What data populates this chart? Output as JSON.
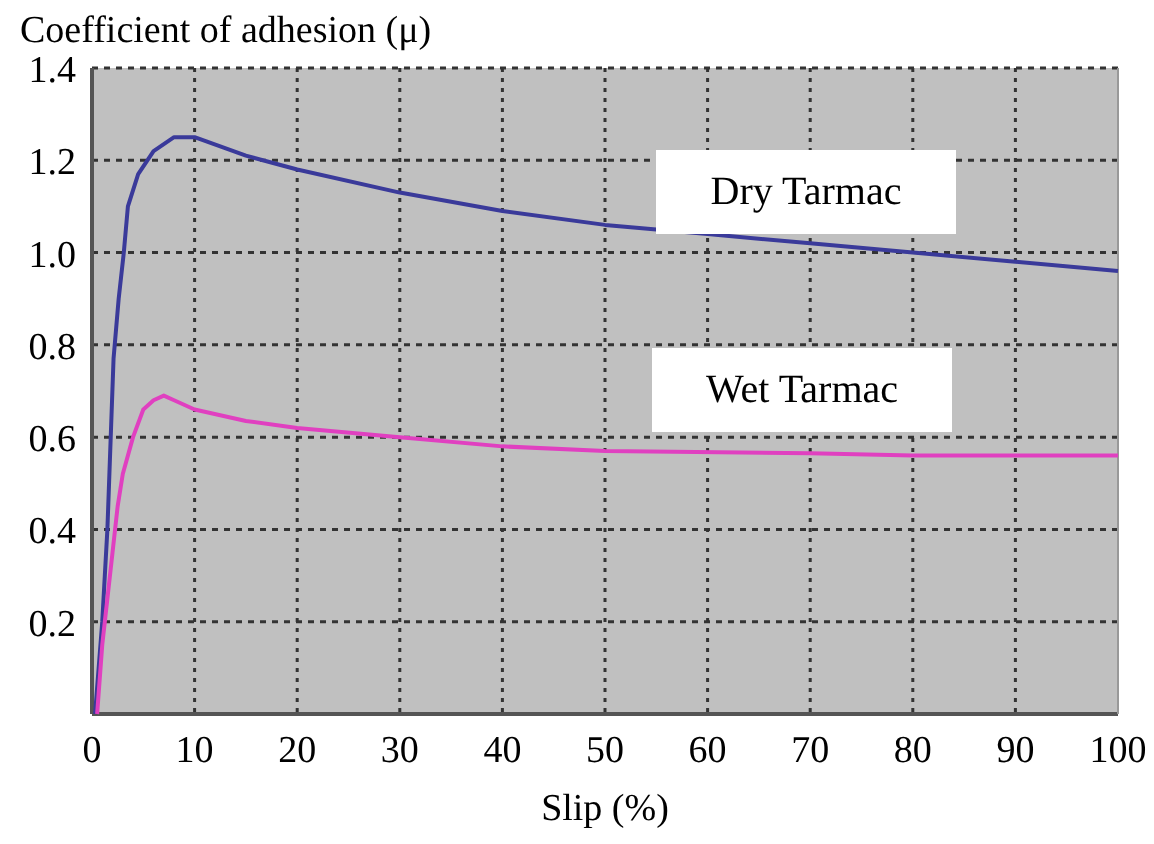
{
  "chart_data": {
    "type": "line",
    "ylabel": "Coefficient of adhesion (μ)",
    "xlabel": "Slip (%)",
    "xlim": [
      0,
      100
    ],
    "xticks": [
      0,
      10,
      20,
      30,
      40,
      50,
      60,
      70,
      80,
      90,
      100
    ],
    "ylim": [
      0,
      1.4
    ],
    "yticks": [
      0.2,
      0.4,
      0.6,
      0.8,
      {
        "value": 1,
        "label": "1.0"
      },
      1.2,
      1.4
    ],
    "grid": true,
    "legend": false,
    "line_style": "solid",
    "marker": "none",
    "series": [
      {
        "name": "Dry Tarmac",
        "color": "#3a3a9a",
        "x": [
          0.3,
          1,
          1.5,
          2.1,
          2.6,
          3.1,
          3.5,
          4.5,
          6,
          8,
          10,
          15,
          20,
          30,
          40,
          50,
          60,
          70,
          80,
          90,
          100
        ],
        "values": [
          0,
          0.2,
          0.4,
          0.77,
          0.9,
          1.0,
          1.1,
          1.17,
          1.22,
          1.25,
          1.25,
          1.21,
          1.18,
          1.13,
          1.09,
          1.06,
          1.04,
          1.02,
          1.0,
          0.98,
          0.96
        ]
      },
      {
        "name": "Wet Tarmac",
        "color": "#e040c0",
        "x": [
          0.5,
          1,
          2,
          2.5,
          3,
          4,
          5,
          6,
          7,
          8,
          10,
          15,
          20,
          30,
          40,
          50,
          70,
          80,
          100
        ],
        "values": [
          0,
          0.15,
          0.35,
          0.45,
          0.52,
          0.6,
          0.66,
          0.68,
          0.69,
          0.68,
          0.66,
          0.635,
          0.62,
          0.6,
          0.58,
          0.57,
          0.565,
          0.56,
          0.56
        ]
      }
    ]
  }
}
